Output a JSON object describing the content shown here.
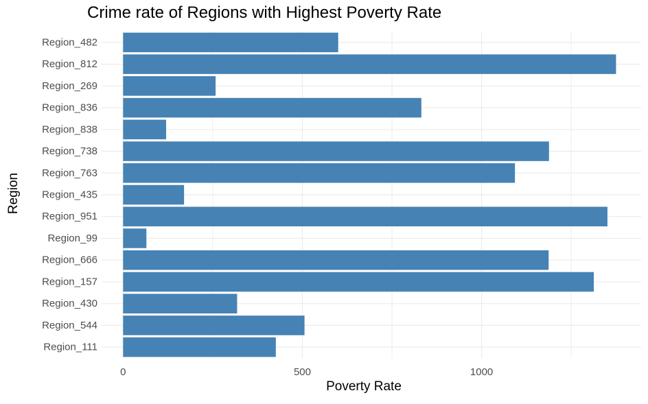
{
  "chart_data": {
    "type": "bar",
    "orientation": "horizontal",
    "title": "Crime rate of Regions with Highest Poverty Rate",
    "xlabel": "Poverty Rate",
    "ylabel": "Region",
    "categories": [
      "Region_482",
      "Region_812",
      "Region_269",
      "Region_836",
      "Region_838",
      "Region_738",
      "Region_763",
      "Region_435",
      "Region_951",
      "Region_99",
      "Region_666",
      "Region_157",
      "Region_430",
      "Region_544",
      "Region_111"
    ],
    "values": [
      600,
      1375,
      258,
      832,
      120,
      1188,
      1093,
      170,
      1351,
      65,
      1187,
      1313,
      318,
      506,
      426
    ],
    "xlim": [
      -60,
      1445
    ],
    "xticks": [
      0,
      500,
      1000
    ],
    "xtick_labels": [
      "0",
      "500",
      "1000"
    ],
    "grid": true,
    "legend": "none",
    "bar_color": "#4682B4",
    "grid_color": "#EBEBEB"
  }
}
